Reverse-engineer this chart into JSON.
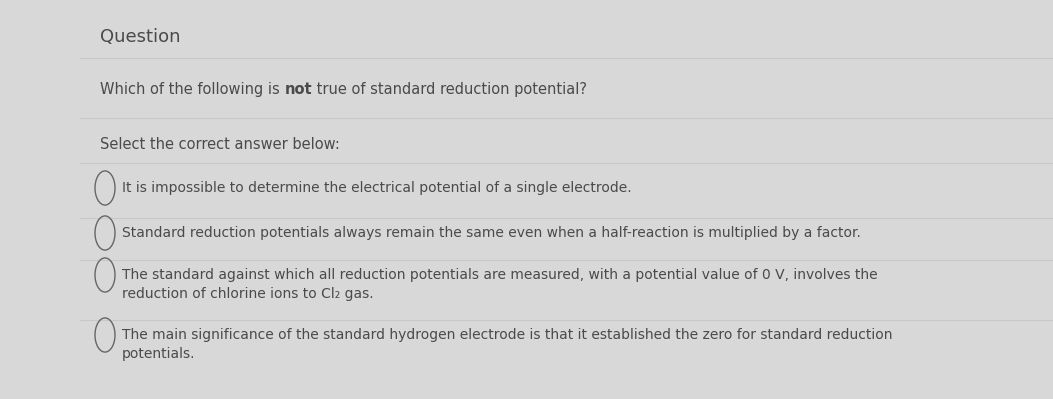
{
  "background_color": "#d8d8d8",
  "panel_color": "#efefef",
  "title": "Question",
  "title_fontsize": 13,
  "question_pre": "Which of the following is ",
  "question_not": "not",
  "question_post": " true of standard reduction potential?",
  "question_fontsize": 10.5,
  "select_text": "Select the correct answer below:",
  "select_fontsize": 10.5,
  "options": [
    "It is impossible to determine the electrical potential of a single electrode.",
    "Standard reduction potentials always remain the same even when a half-reaction is multiplied by a factor.",
    "The standard against which all reduction potentials are measured, with a potential value of 0 V, involves the\nreduction of chlorine ions to Cl₂ gas.",
    "The main significance of the standard hydrogen electrode is that it established the zero for standard reduction\npotentials."
  ],
  "option_fontsize": 10,
  "text_color": "#4a4a4a",
  "line_color": "#c8c8c8",
  "circle_color": "#666666",
  "figwidth": 10.53,
  "figheight": 3.99,
  "dpi": 100
}
